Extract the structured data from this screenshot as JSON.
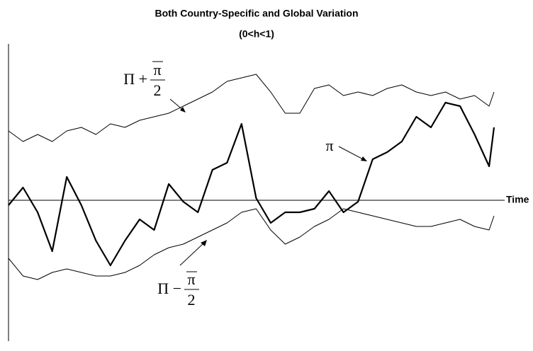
{
  "chart_data": {
    "type": "line",
    "title": "Both Country-Specific and Global Variation",
    "subtitle": "(0<h<1)",
    "x_label": "Time",
    "annotations": [
      {
        "prefix": "Π +",
        "numerator": "π",
        "denominator": "2"
      },
      {
        "text": "π"
      },
      {
        "prefix": "Π −",
        "numerator": "π",
        "denominator": "2"
      }
    ],
    "xlim": [
      0,
      100
    ],
    "ylim": [
      -197,
      221
    ],
    "x": [
      0,
      3,
      6,
      9,
      12,
      15,
      18,
      21,
      24,
      27,
      30,
      33,
      36,
      39,
      42,
      45,
      48,
      51,
      54,
      57,
      60,
      63,
      66,
      69,
      72,
      75,
      78,
      81,
      84,
      87,
      90,
      93,
      96,
      99,
      100
    ],
    "series": [
      {
        "color": "#000000",
        "width": 1,
        "values": [
          98,
          83,
          93,
          83,
          98,
          103,
          93,
          108,
          103,
          113,
          118,
          123,
          133,
          143,
          153,
          168,
          173,
          178,
          153,
          123,
          123,
          158,
          163,
          148,
          153,
          148,
          158,
          163,
          153,
          148,
          153,
          143,
          148,
          133,
          153
        ]
      },
      {
        "color": "#000000",
        "width": 2.2,
        "values": [
          -7,
          18,
          -17,
          -72,
          33,
          -7,
          -57,
          -92,
          -57,
          -27,
          -42,
          23,
          -2,
          -17,
          43,
          53,
          108,
          3,
          -32,
          -17,
          -17,
          -12,
          13,
          -17,
          -2,
          58,
          68,
          83,
          118,
          103,
          138,
          133,
          93,
          48,
          103
        ]
      },
      {
        "color": "#000000",
        "width": 1,
        "values": [
          -82,
          -107,
          -112,
          -102,
          -97,
          -102,
          -107,
          -107,
          -102,
          -92,
          -77,
          -67,
          -62,
          -52,
          -42,
          -32,
          -17,
          -12,
          -42,
          -62,
          -52,
          -37,
          -27,
          -12,
          -17,
          -22,
          -27,
          -32,
          -37,
          -37,
          -32,
          -27,
          -37,
          -42,
          -22
        ]
      }
    ]
  }
}
